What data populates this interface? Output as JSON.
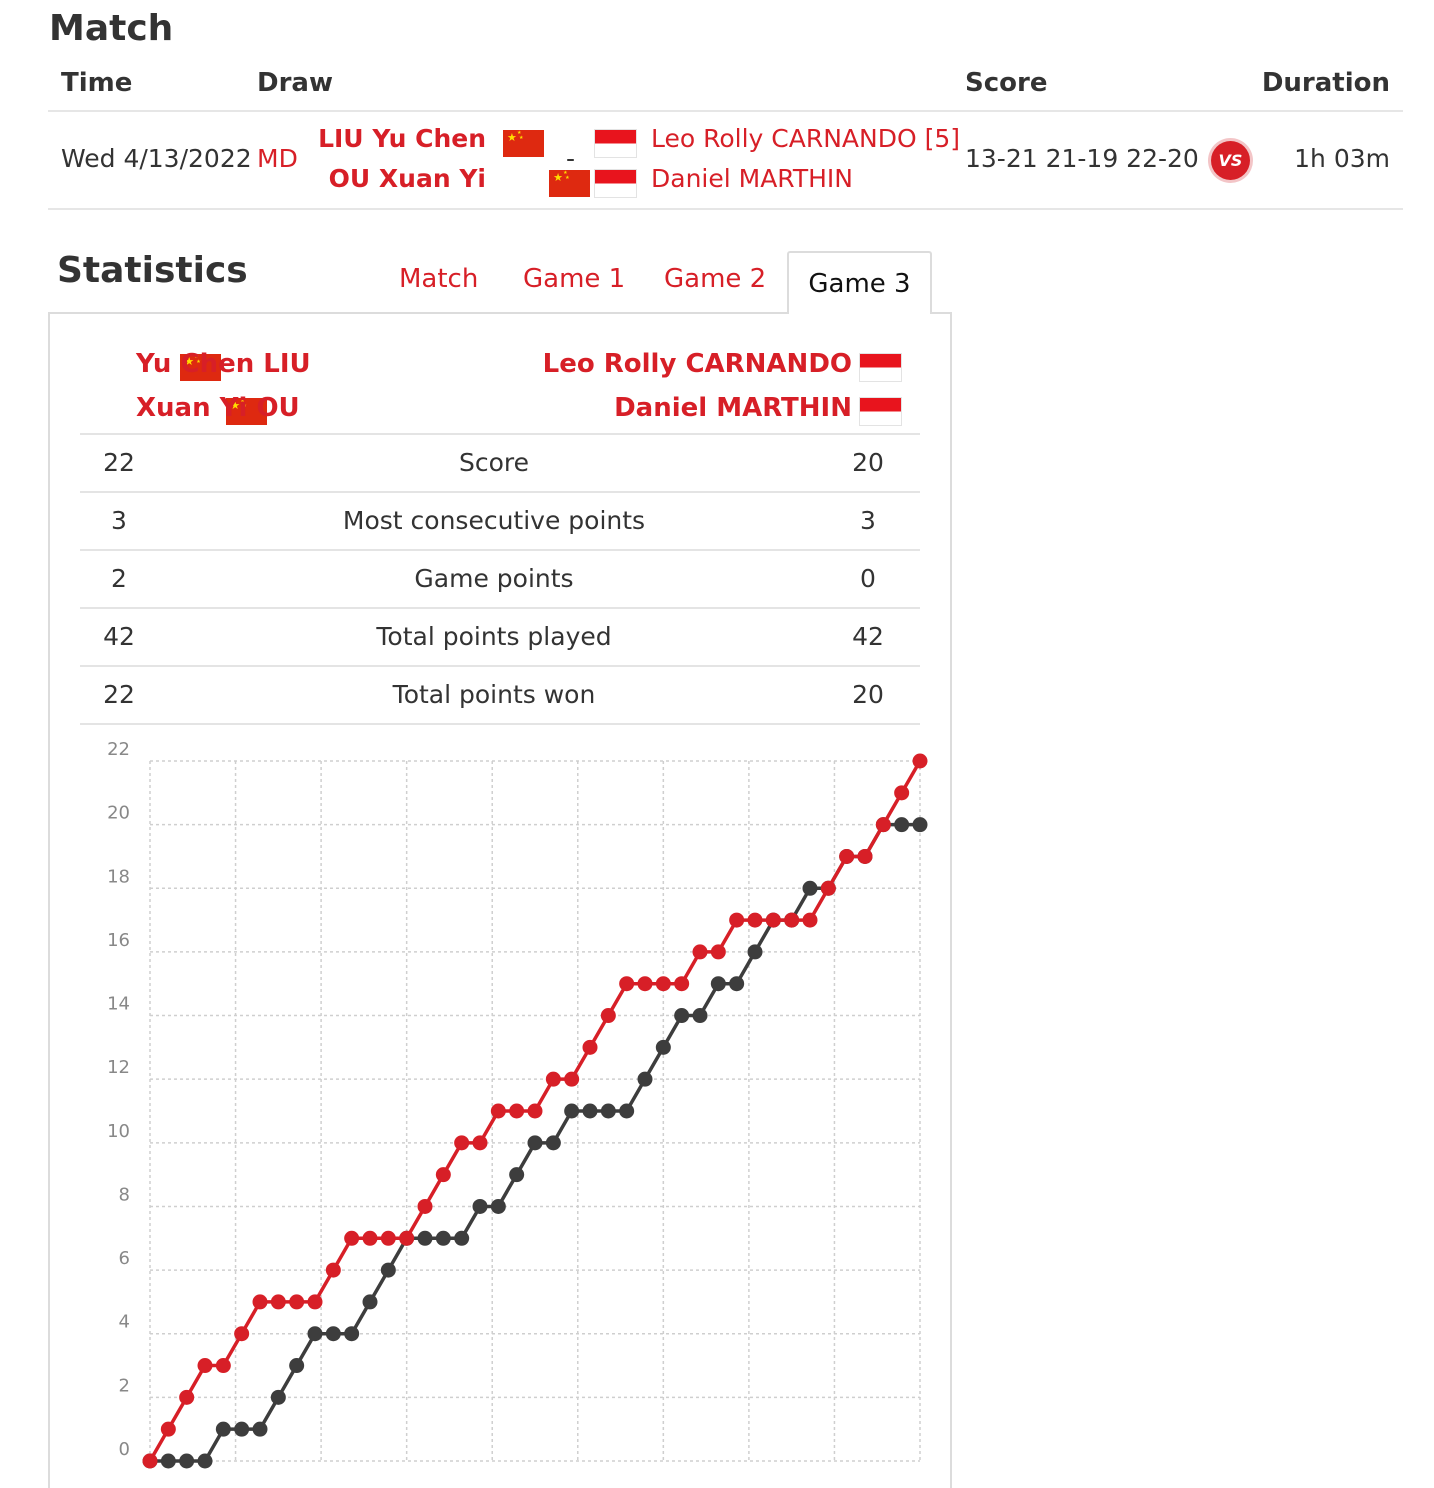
{
  "match": {
    "title": "Match",
    "headers": {
      "time": "Time",
      "draw": "Draw",
      "score": "Score",
      "duration": "Duration"
    },
    "date": "Wed 4/13/2022",
    "draw": "MD",
    "team1": [
      "LIU Yu Chen",
      "OU Xuan Yi"
    ],
    "separator": "-",
    "team2": [
      "Leo Rolly CARNANDO [5]",
      "Daniel MARTHIN"
    ],
    "score": "13-21 21-19 22-20",
    "vs_badge": "VS",
    "duration": "1h 03m"
  },
  "statistics": {
    "title": "Statistics",
    "tabs": [
      "Match",
      "Game 1",
      "Game 2",
      "Game 3"
    ],
    "active_tab": "Game 3",
    "players_left": [
      "Yu Chen LIU",
      "Xuan Yi OU"
    ],
    "players_right": [
      "Leo Rolly CARNANDO",
      "Daniel MARTHIN"
    ],
    "rows": [
      {
        "left": "22",
        "label": "Score",
        "right": "20"
      },
      {
        "left": "3",
        "label": "Most consecutive points",
        "right": "3"
      },
      {
        "left": "2",
        "label": "Game points",
        "right": "0"
      },
      {
        "left": "42",
        "label": "Total points played",
        "right": "42"
      },
      {
        "left": "22",
        "label": "Total points won",
        "right": "20"
      }
    ]
  },
  "colors": {
    "accent": "#d71f27",
    "series2": "#3d3d3d",
    "cn_flag": "#de2910",
    "id_flag": "#e8141d"
  },
  "chart_data": {
    "type": "line",
    "title": "",
    "xlabel": "",
    "ylabel": "",
    "ylim": [
      0,
      22
    ],
    "yticks": [
      0,
      2,
      4,
      6,
      8,
      10,
      12,
      14,
      16,
      18,
      20,
      22
    ],
    "x": [
      0,
      1,
      2,
      3,
      4,
      5,
      6,
      7,
      8,
      9,
      10,
      11,
      12,
      13,
      14,
      15,
      16,
      17,
      18,
      19,
      20,
      21,
      22,
      23,
      24,
      25,
      26,
      27,
      28,
      29,
      30,
      31,
      32,
      33,
      34,
      35,
      36,
      37,
      38,
      39,
      40,
      41,
      42
    ],
    "series": [
      {
        "name": "LIU Yu Chen / OU Xuan Yi",
        "color": "#d71f27",
        "values": [
          0,
          1,
          2,
          3,
          3,
          4,
          5,
          5,
          5,
          5,
          6,
          7,
          7,
          7,
          7,
          8,
          9,
          10,
          10,
          11,
          11,
          11,
          12,
          12,
          13,
          14,
          15,
          15,
          15,
          15,
          16,
          16,
          17,
          17,
          17,
          17,
          17,
          18,
          19,
          19,
          20,
          21,
          22
        ]
      },
      {
        "name": "Leo Rolly CARNANDO / Daniel MARTHIN",
        "color": "#3d3d3d",
        "values": [
          0,
          0,
          0,
          0,
          1,
          1,
          1,
          2,
          3,
          4,
          4,
          4,
          5,
          6,
          7,
          7,
          7,
          7,
          8,
          8,
          9,
          10,
          10,
          11,
          11,
          11,
          11,
          12,
          13,
          14,
          14,
          15,
          15,
          16,
          17,
          17,
          18,
          18,
          19,
          19,
          20,
          20,
          20
        ]
      }
    ]
  }
}
